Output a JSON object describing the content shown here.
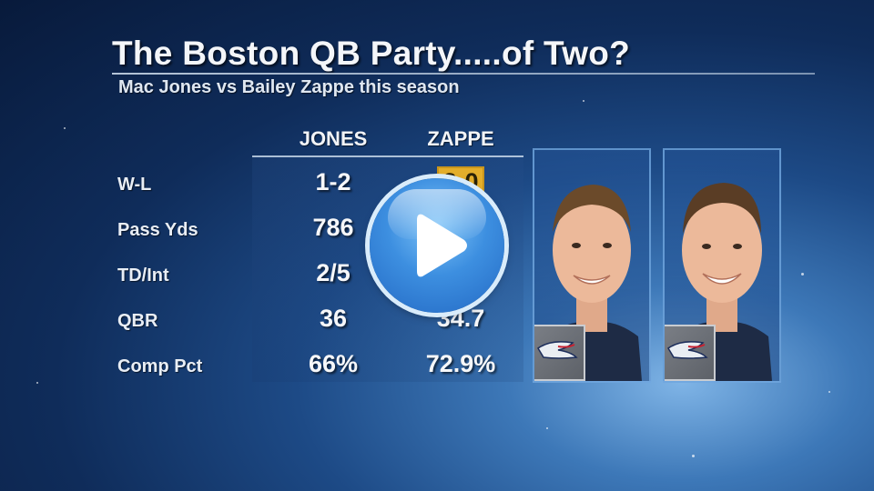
{
  "header": {
    "title": "The Boston QB Party.....of Two?",
    "subtitle": "Mac Jones vs Bailey Zappe this season"
  },
  "table": {
    "columns": [
      "JONES",
      "ZAPPE"
    ],
    "rows": [
      {
        "label": "W-L",
        "jones": "1-2",
        "zappe": "2-0"
      },
      {
        "label": "Pass Yds",
        "jones": "786",
        "zappe": ""
      },
      {
        "label": "TD/Int",
        "jones": "2/5",
        "zappe": ""
      },
      {
        "label": "QBR",
        "jones": "36",
        "zappe": "34.7"
      },
      {
        "label": "Comp Pct",
        "jones": "66%",
        "zappe": "72.9%"
      }
    ],
    "highlight": {
      "color": "#e3ae2b"
    }
  },
  "players": [
    {
      "name": "Mac Jones",
      "team_logo": "patriots-logo"
    },
    {
      "name": "Bailey Zappe",
      "team_logo": "patriots-logo"
    }
  ],
  "player_overlay": {
    "icon": "play-icon"
  },
  "colors": {
    "accent": "#e3ae2b",
    "background": "#0f2c5a",
    "play_button": "#3d8fe0"
  }
}
